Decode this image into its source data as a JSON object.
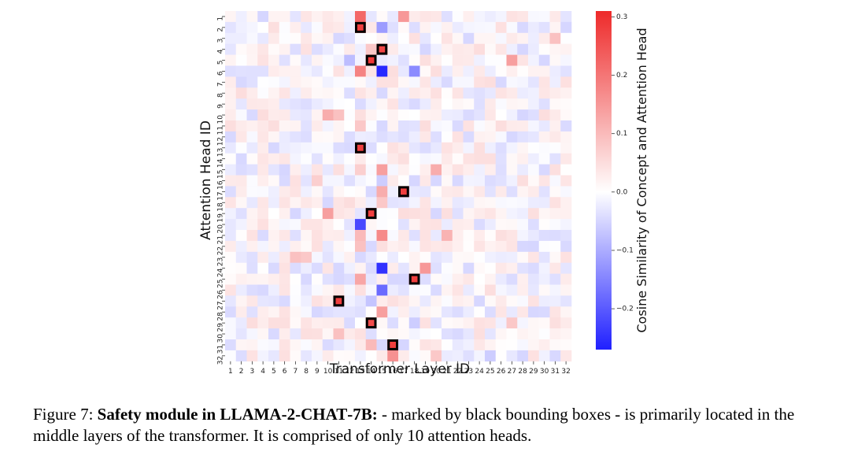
{
  "chart_data": {
    "type": "heatmap",
    "title": "",
    "xlabel": "Transformer Layer ID",
    "ylabel": "Attention Head ID",
    "x_categories": [
      "1",
      "2",
      "3",
      "4",
      "5",
      "6",
      "7",
      "8",
      "9",
      "10",
      "11",
      "12",
      "13",
      "14",
      "15",
      "16",
      "17",
      "18",
      "19",
      "20",
      "21",
      "22",
      "23",
      "24",
      "25",
      "26",
      "27",
      "28",
      "29",
      "30",
      "31",
      "32"
    ],
    "y_categories": [
      "1",
      "2",
      "3",
      "4",
      "5",
      "6",
      "7",
      "8",
      "9",
      "10",
      "11",
      "12",
      "13",
      "14",
      "15",
      "16",
      "17",
      "18",
      "19",
      "20",
      "21",
      "22",
      "23",
      "24",
      "25",
      "26",
      "27",
      "28",
      "29",
      "30",
      "31",
      "32"
    ],
    "colorbar": {
      "label": "Cosine Similarity of Concept and Attention Head",
      "min": -0.27,
      "max": 0.31,
      "ticks": [
        0.3,
        0.2,
        0.1,
        0.0,
        -0.1,
        -0.2
      ],
      "tick_labels": [
        "0.3",
        "0.2",
        "0.1",
        "0.0",
        "−0.1",
        "−0.2"
      ],
      "colormap": "bwr",
      "color_low": "#2020ff",
      "color_mid": "#ffffff",
      "color_high": "#ee2a2a"
    },
    "cells": [
      {
        "layer": 13,
        "head": 1,
        "value": 0.22
      },
      {
        "layer": 17,
        "head": 1,
        "value": 0.15
      },
      {
        "layer": 4,
        "head": 1,
        "value": -0.05
      },
      {
        "layer": 13,
        "head": 2,
        "value": 0.28
      },
      {
        "layer": 15,
        "head": 2,
        "value": -0.12
      },
      {
        "layer": 12,
        "head": 3,
        "value": -0.04
      },
      {
        "layer": 15,
        "head": 4,
        "value": 0.27
      },
      {
        "layer": 14,
        "head": 4,
        "value": 0.08
      },
      {
        "layer": 12,
        "head": 5,
        "value": -0.08
      },
      {
        "layer": 14,
        "head": 5,
        "value": 0.29
      },
      {
        "layer": 27,
        "head": 5,
        "value": 0.14
      },
      {
        "layer": 13,
        "head": 6,
        "value": 0.18
      },
      {
        "layer": 15,
        "head": 6,
        "value": -0.26
      },
      {
        "layer": 18,
        "head": 6,
        "value": -0.14
      },
      {
        "layer": 10,
        "head": 10,
        "value": 0.12
      },
      {
        "layer": 11,
        "head": 10,
        "value": 0.09
      },
      {
        "layer": 13,
        "head": 11,
        "value": 0.08
      },
      {
        "layer": 13,
        "head": 13,
        "value": 0.28
      },
      {
        "layer": 13,
        "head": 15,
        "value": 0.07
      },
      {
        "layer": 15,
        "head": 15,
        "value": 0.14
      },
      {
        "layer": 20,
        "head": 15,
        "value": 0.12
      },
      {
        "layer": 15,
        "head": 16,
        "value": -0.06
      },
      {
        "layer": 17,
        "head": 17,
        "value": 0.28
      },
      {
        "layer": 15,
        "head": 17,
        "value": 0.12
      },
      {
        "layer": 9,
        "head": 16,
        "value": 0.07
      },
      {
        "layer": 15,
        "head": 18,
        "value": 0.08
      },
      {
        "layer": 10,
        "head": 19,
        "value": 0.14
      },
      {
        "layer": 14,
        "head": 19,
        "value": 0.28
      },
      {
        "layer": 13,
        "head": 20,
        "value": -0.22
      },
      {
        "layer": 13,
        "head": 21,
        "value": 0.1
      },
      {
        "layer": 15,
        "head": 21,
        "value": 0.17
      },
      {
        "layer": 21,
        "head": 21,
        "value": 0.11
      },
      {
        "layer": 13,
        "head": 22,
        "value": 0.09
      },
      {
        "layer": 7,
        "head": 23,
        "value": 0.09
      },
      {
        "layer": 8,
        "head": 23,
        "value": 0.08
      },
      {
        "layer": 15,
        "head": 24,
        "value": -0.25
      },
      {
        "layer": 19,
        "head": 24,
        "value": 0.15
      },
      {
        "layer": 18,
        "head": 25,
        "value": 0.28
      },
      {
        "layer": 13,
        "head": 25,
        "value": 0.13
      },
      {
        "layer": 15,
        "head": 26,
        "value": -0.18
      },
      {
        "layer": 11,
        "head": 27,
        "value": 0.28
      },
      {
        "layer": 14,
        "head": 27,
        "value": -0.07
      },
      {
        "layer": 15,
        "head": 28,
        "value": 0.14
      },
      {
        "layer": 14,
        "head": 29,
        "value": 0.26
      },
      {
        "layer": 18,
        "head": 29,
        "value": -0.06
      },
      {
        "layer": 11,
        "head": 30,
        "value": 0.09
      },
      {
        "layer": 16,
        "head": 31,
        "value": 0.28
      },
      {
        "layer": 14,
        "head": 31,
        "value": 0.1
      },
      {
        "layer": 16,
        "head": 32,
        "value": 0.16
      },
      {
        "layer": 20,
        "head": 32,
        "value": 0.08
      },
      {
        "layer": 25,
        "head": 32,
        "value": -0.06
      },
      {
        "layer": 27,
        "head": 29,
        "value": 0.08
      },
      {
        "layer": 31,
        "head": 3,
        "value": 0.09
      }
    ],
    "background_noise_amplitude": 0.05,
    "highlighted": [
      {
        "layer": 13,
        "head": 2
      },
      {
        "layer": 15,
        "head": 4
      },
      {
        "layer": 14,
        "head": 5
      },
      {
        "layer": 13,
        "head": 13
      },
      {
        "layer": 17,
        "head": 17
      },
      {
        "layer": 14,
        "head": 19
      },
      {
        "layer": 18,
        "head": 25
      },
      {
        "layer": 11,
        "head": 27
      },
      {
        "layer": 14,
        "head": 29
      },
      {
        "layer": 16,
        "head": 31
      }
    ],
    "highlight_style": "black bounding box"
  },
  "caption": {
    "prefix": "Figure 7: ",
    "bold_part1": "Safety module in L",
    "bold_sc1": "LAMA",
    "bold_part2": "-2-",
    "bold_sc2": "CHAT",
    "bold_part3": "-7B:",
    "rest": " - marked by black bounding boxes - is primarily located in the middle layers of the transformer. It is comprised of only 10 attention heads."
  }
}
